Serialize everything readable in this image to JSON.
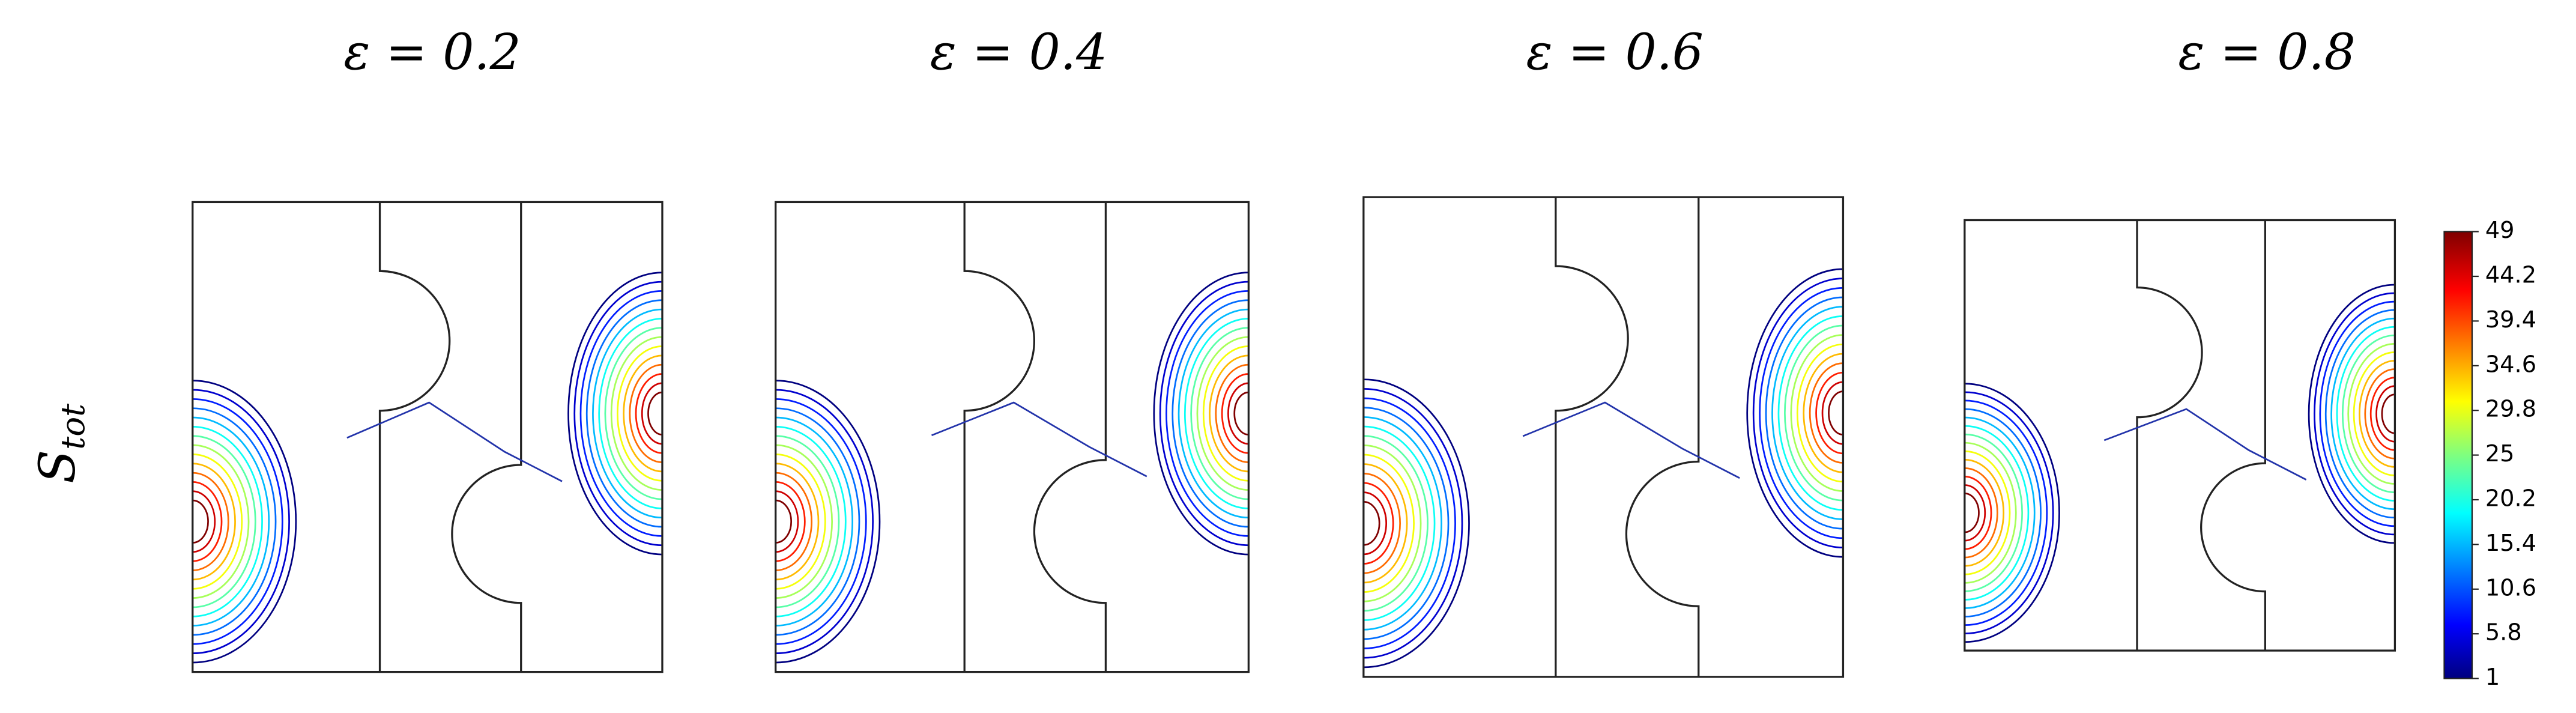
{
  "panels": [
    {
      "title": "ε = 0.2"
    },
    {
      "title": "ε = 0.4"
    },
    {
      "title": "ε = 0.6"
    },
    {
      "title": "ε = 0.8"
    }
  ],
  "row_label": {
    "main": "S",
    "subscript": "tot"
  },
  "colorbar": {
    "lim": [
      1,
      49
    ],
    "ticks": [
      1,
      5.8,
      10.6,
      15.4,
      20.2,
      25,
      29.8,
      34.6,
      39.4,
      44.2,
      49
    ]
  }
}
